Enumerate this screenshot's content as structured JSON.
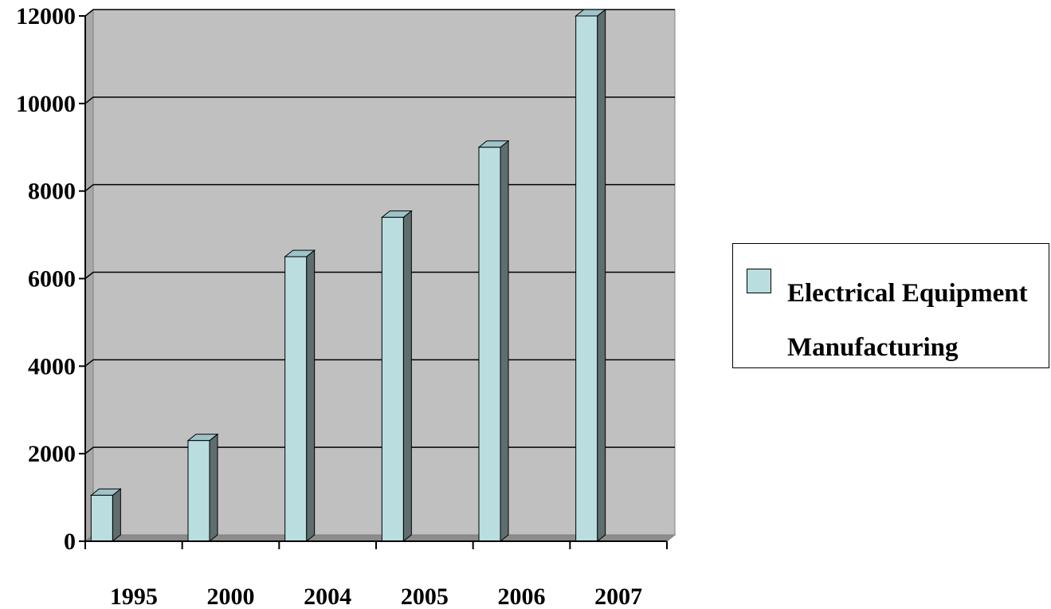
{
  "chart_data": {
    "type": "bar",
    "title": "",
    "xlabel": "",
    "ylabel": "",
    "categories": [
      "1995",
      "2000",
      "2004",
      "2005",
      "2006",
      "2007"
    ],
    "series": [
      {
        "name": "Electrical Equipment Manufacturing",
        "values": [
          1050,
          2300,
          6500,
          7400,
          9000,
          12000
        ]
      }
    ],
    "ylim": [
      0,
      12000
    ],
    "yticks": [
      0,
      2000,
      4000,
      6000,
      8000,
      10000,
      12000
    ],
    "grid": true,
    "legend_position": "right",
    "colors": {
      "plot_background": "#C0C0C0",
      "bar_face": "#BADDE0",
      "bar_side": "#5E6E6E",
      "bar_top": "#9EC4C8",
      "gridline": "#000000"
    }
  }
}
